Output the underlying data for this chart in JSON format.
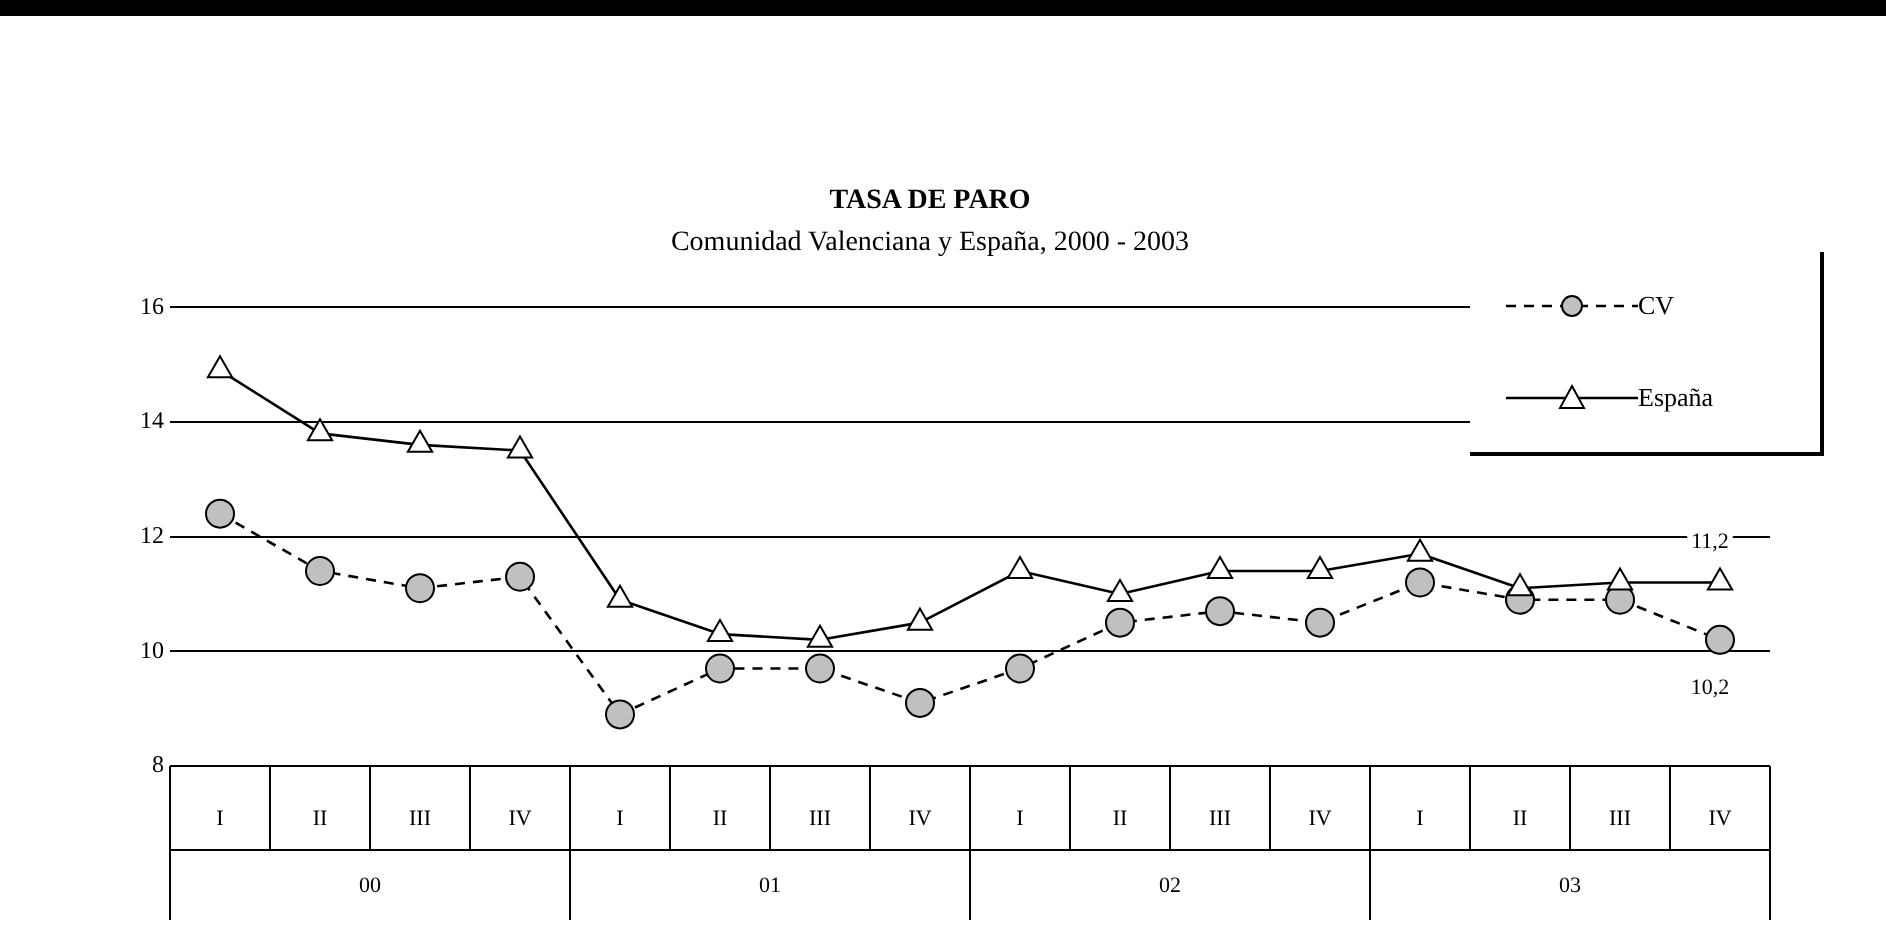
{
  "chart_data": {
    "type": "line",
    "title": "TASA DE PARO",
    "subtitle": "Comunidad Valenciana y España, 2000 - 2003",
    "categories": [
      "I",
      "II",
      "III",
      "IV",
      "I",
      "II",
      "III",
      "IV",
      "I",
      "II",
      "III",
      "IV",
      "I",
      "II",
      "III",
      "IV"
    ],
    "annotations": [
      "00",
      "01",
      "02",
      "03"
    ],
    "series": [
      {
        "name": "CV",
        "color": "#000000",
        "marker": "circle",
        "line_style": "dashed",
        "values": [
          12.4,
          11.4,
          11.1,
          11.3,
          8.9,
          9.7,
          9.7,
          9.1,
          9.7,
          10.5,
          10.7,
          10.5,
          11.2,
          10.9,
          10.9,
          10.2
        ],
        "value_labels": [
          null,
          null,
          null,
          null,
          null,
          null,
          null,
          null,
          null,
          null,
          null,
          null,
          null,
          null,
          null,
          "10,2"
        ]
      },
      {
        "name": "España",
        "color": "#000000",
        "marker": "triangle",
        "line_style": "solid",
        "values": [
          14.9,
          13.8,
          13.6,
          13.5,
          10.9,
          10.3,
          10.2,
          10.5,
          11.4,
          11.0,
          11.4,
          11.4,
          11.7,
          11.1,
          11.2,
          11.2
        ],
        "value_labels": [
          null,
          null,
          null,
          null,
          null,
          null,
          null,
          null,
          null,
          null,
          null,
          null,
          null,
          null,
          null,
          "11,2"
        ]
      }
    ],
    "ylim": [
      8,
      16
    ],
    "yticks": [
      8,
      10,
      12,
      14,
      16
    ],
    "grid": "y",
    "legend": "top right"
  }
}
